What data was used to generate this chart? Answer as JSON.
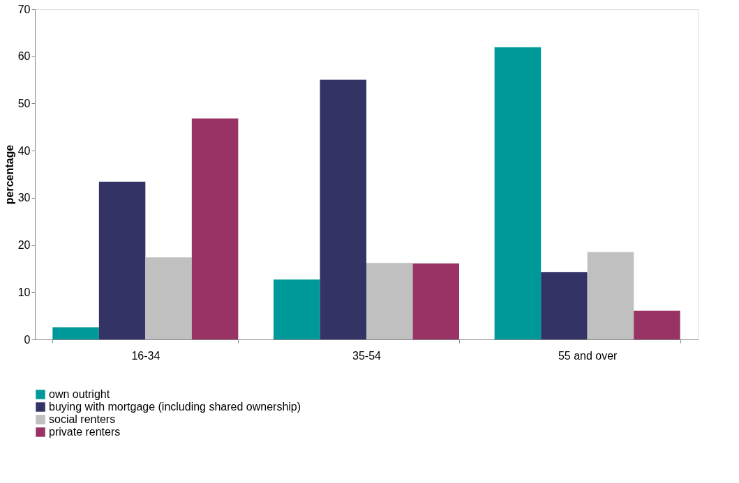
{
  "chart_data": {
    "type": "bar",
    "ylabel": "percentage",
    "categories": [
      "16-34",
      "35-54",
      "55 and over"
    ],
    "series": [
      {
        "name": "own outright",
        "color": "#009999",
        "values": [
          2.6,
          12.7,
          61.9
        ]
      },
      {
        "name": "buying with mortgage (including shared ownership)",
        "color": "#333366",
        "values": [
          33.4,
          55.0,
          14.3
        ]
      },
      {
        "name": "social renters",
        "color": "#c0c0c0",
        "values": [
          17.4,
          16.2,
          18.5
        ]
      },
      {
        "name": "private renters",
        "color": "#993366",
        "values": [
          46.8,
          16.1,
          6.1
        ]
      }
    ],
    "ylim": [
      0,
      70
    ],
    "yticks": [
      0,
      10,
      20,
      30,
      40,
      50,
      60,
      70
    ],
    "grid": false,
    "legend": "bottom"
  }
}
